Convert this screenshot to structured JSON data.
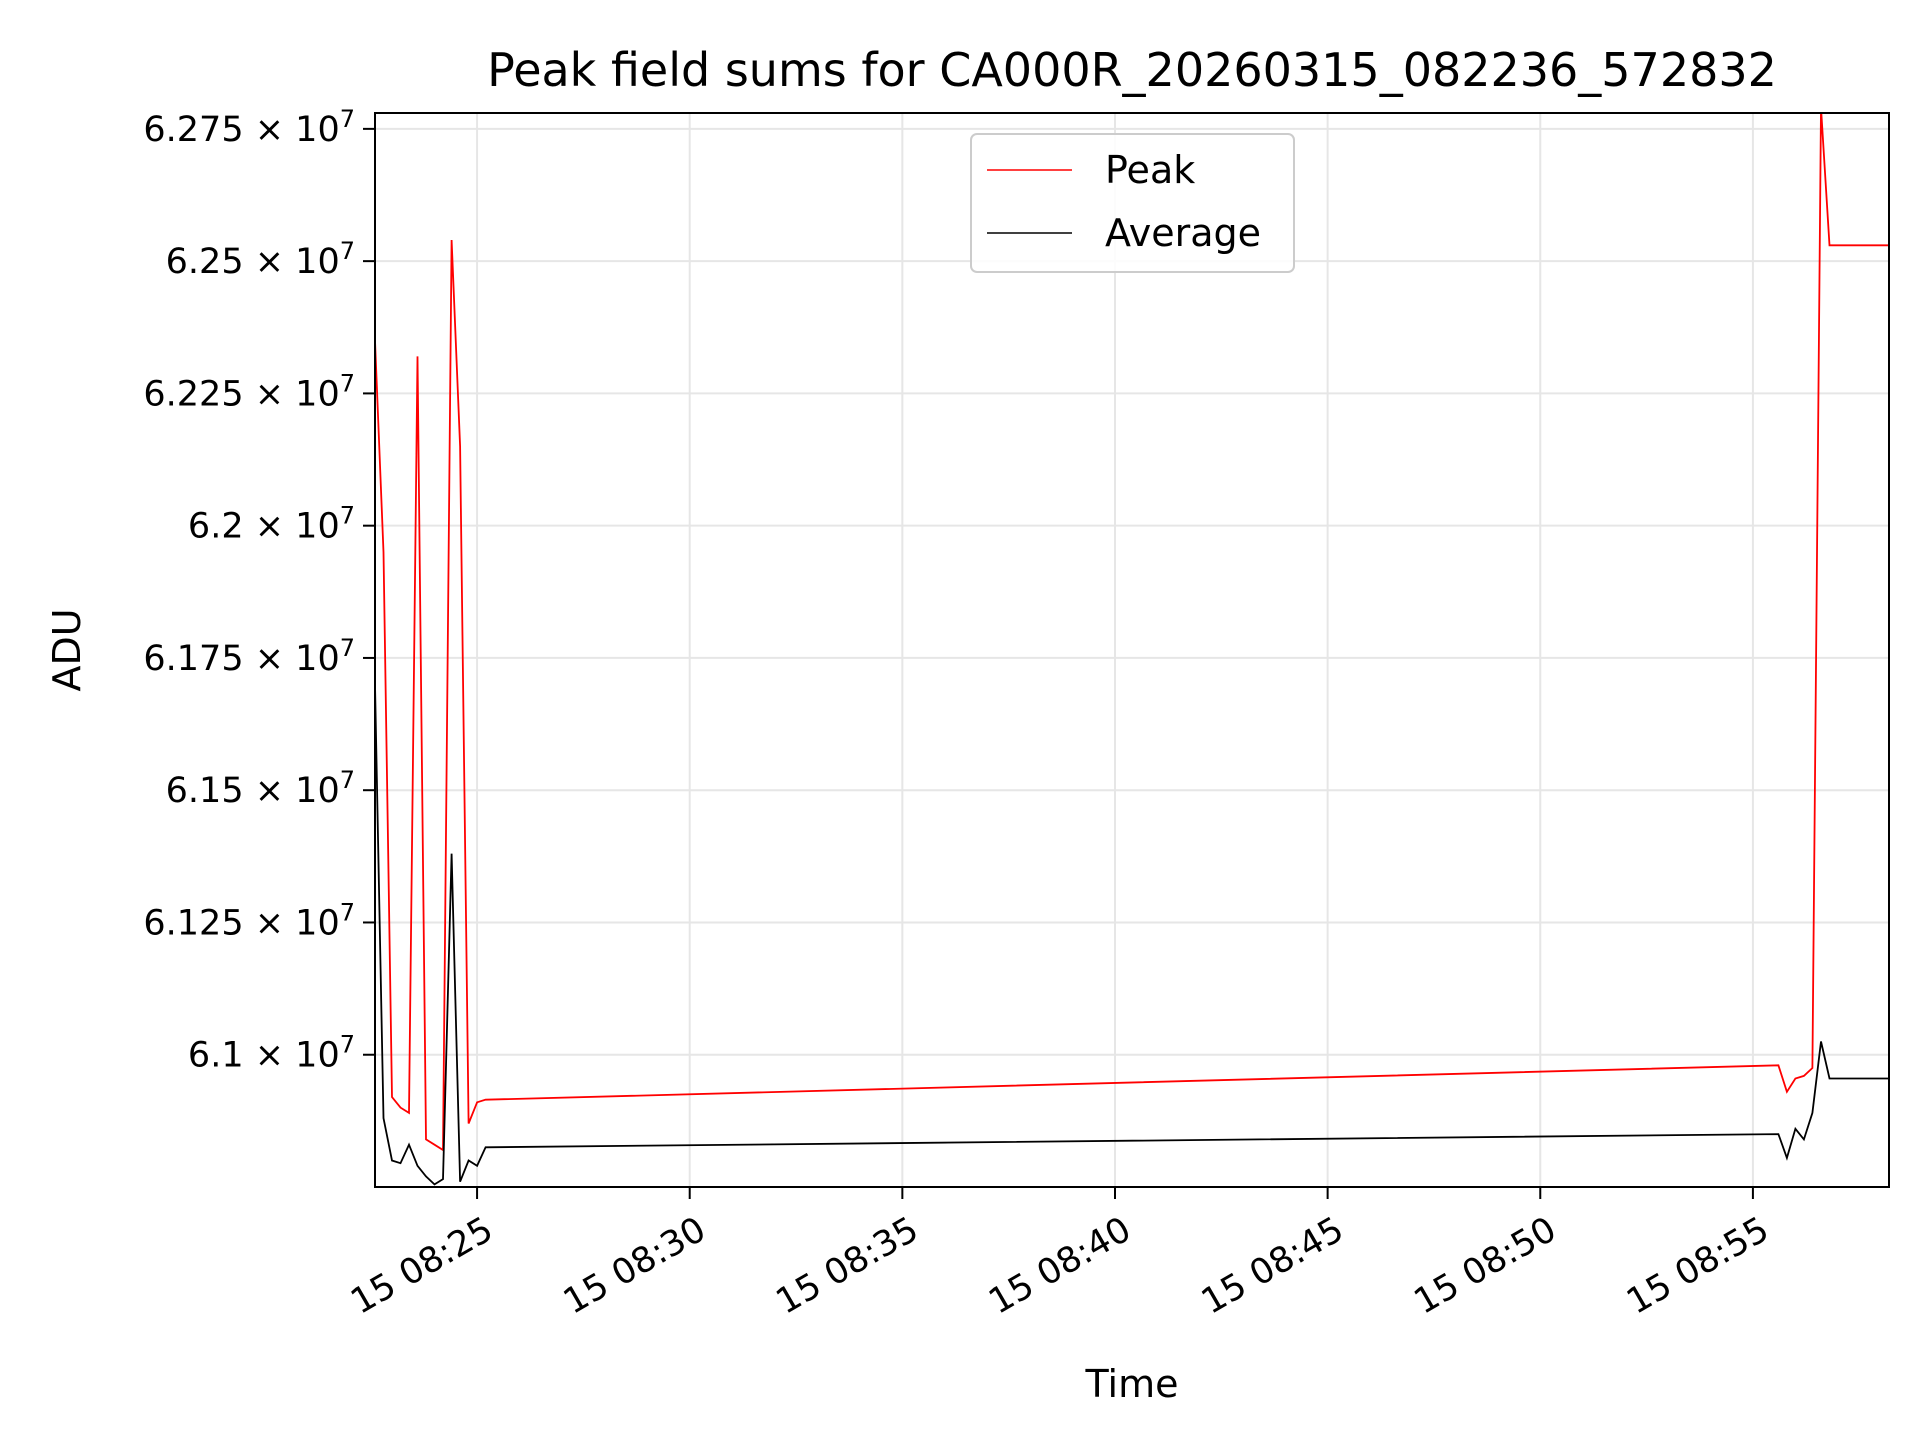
{
  "chart_data": {
    "type": "line",
    "title": "Peak field sums for CA000R_20260315_082236_572832",
    "xlabel": "Time",
    "ylabel": "ADU",
    "xlim": [
      "15 08:22:36",
      "15 08:58:12"
    ],
    "ylim": [
      60750000,
      62780000
    ],
    "grid": true,
    "legend_position": "top-center",
    "x_ticks": [
      {
        "label": "15 08:25",
        "value": "15 08:25:00"
      },
      {
        "label": "15 08:30",
        "value": "15 08:30:00"
      },
      {
        "label": "15 08:35",
        "value": "15 08:35:00"
      },
      {
        "label": "15 08:40",
        "value": "15 08:40:00"
      },
      {
        "label": "15 08:45",
        "value": "15 08:45:00"
      },
      {
        "label": "15 08:50",
        "value": "15 08:50:00"
      },
      {
        "label": "15 08:55",
        "value": "15 08:55:00"
      }
    ],
    "y_ticks": [
      {
        "mantissa": "6.1",
        "exponent": "7",
        "value": 61000000
      },
      {
        "mantissa": "6.125",
        "exponent": "7",
        "value": 61250000
      },
      {
        "mantissa": "6.15",
        "exponent": "7",
        "value": 61500000
      },
      {
        "mantissa": "6.175",
        "exponent": "7",
        "value": 61750000
      },
      {
        "mantissa": "6.2",
        "exponent": "7",
        "value": 62000000
      },
      {
        "mantissa": "6.225",
        "exponent": "7",
        "value": 62250000
      },
      {
        "mantissa": "6.25",
        "exponent": "7",
        "value": 62500000
      },
      {
        "mantissa": "6.275",
        "exponent": "7",
        "value": 62750000
      }
    ],
    "series": [
      {
        "name": "Peak",
        "color": "#ff0000",
        "points": [
          [
            "15 08:22:36",
            62350000
          ],
          [
            "15 08:22:48",
            61950000
          ],
          [
            "15 08:23:00",
            60920000
          ],
          [
            "15 08:23:12",
            60900000
          ],
          [
            "15 08:23:24",
            60890000
          ],
          [
            "15 08:23:36",
            62320000
          ],
          [
            "15 08:23:48",
            60840000
          ],
          [
            "15 08:24:00",
            60830000
          ],
          [
            "15 08:24:12",
            60820000
          ],
          [
            "15 08:24:24",
            62540000
          ],
          [
            "15 08:24:36",
            62150000
          ],
          [
            "15 08:24:48",
            60870000
          ],
          [
            "15 08:25:00",
            60910000
          ],
          [
            "15 08:25:12",
            60915000
          ],
          [
            "15 08:55:36",
            60980000
          ],
          [
            "15 08:55:48",
            60930000
          ],
          [
            "15 08:56:00",
            60955000
          ],
          [
            "15 08:56:12",
            60960000
          ],
          [
            "15 08:56:24",
            60975000
          ],
          [
            "15 08:56:36",
            62790000
          ],
          [
            "15 08:56:48",
            62530000
          ],
          [
            "15 08:58:12",
            62530000
          ]
        ]
      },
      {
        "name": "Average",
        "color": "#000000",
        "points": [
          [
            "15 08:22:36",
            61700000
          ],
          [
            "15 08:22:48",
            60880000
          ],
          [
            "15 08:23:00",
            60800000
          ],
          [
            "15 08:23:12",
            60795000
          ],
          [
            "15 08:23:24",
            60830000
          ],
          [
            "15 08:23:36",
            60790000
          ],
          [
            "15 08:23:48",
            60770000
          ],
          [
            "15 08:24:00",
            60755000
          ],
          [
            "15 08:24:12",
            60765000
          ],
          [
            "15 08:24:24",
            61380000
          ],
          [
            "15 08:24:36",
            60760000
          ],
          [
            "15 08:24:48",
            60800000
          ],
          [
            "15 08:25:00",
            60790000
          ],
          [
            "15 08:25:12",
            60825000
          ],
          [
            "15 08:55:36",
            60850000
          ],
          [
            "15 08:55:48",
            60805000
          ],
          [
            "15 08:56:00",
            60860000
          ],
          [
            "15 08:56:12",
            60840000
          ],
          [
            "15 08:56:24",
            60890000
          ],
          [
            "15 08:56:36",
            61025000
          ],
          [
            "15 08:56:48",
            60955000
          ],
          [
            "15 08:58:12",
            60955000
          ]
        ]
      }
    ]
  }
}
